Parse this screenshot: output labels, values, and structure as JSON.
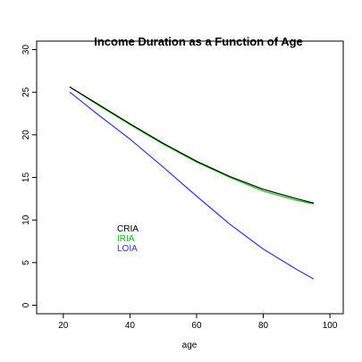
{
  "chart_data": {
    "type": "line",
    "title": "Income Duration as a Function of Age",
    "xlabel": "age",
    "ylabel": "",
    "xlim": [
      12,
      104
    ],
    "ylim": [
      -1,
      31
    ],
    "xticks": [
      20,
      40,
      60,
      80,
      100
    ],
    "yticks": [
      0,
      5,
      10,
      15,
      20,
      25,
      30
    ],
    "grid": false,
    "legend": {
      "placement": "lower-left",
      "frame": false
    },
    "series": [
      {
        "name": "CRIA",
        "color": "#000000",
        "x": [
          22,
          30,
          40,
          50,
          60,
          70,
          80,
          90,
          95
        ],
        "y": [
          25.6,
          23.7,
          21.3,
          19.0,
          16.9,
          15.1,
          13.6,
          12.5,
          12.0
        ]
      },
      {
        "name": "IRIA",
        "color": "#00cc00",
        "x": [
          22,
          30,
          40,
          50,
          60,
          70,
          80,
          90,
          95
        ],
        "y": [
          25.6,
          23.6,
          21.2,
          18.9,
          16.8,
          15.0,
          13.4,
          12.3,
          11.9
        ]
      },
      {
        "name": "LOIA",
        "color": "#3333ff",
        "x": [
          22,
          30,
          40,
          50,
          60,
          70,
          80,
          90,
          95
        ],
        "y": [
          25.0,
          22.5,
          19.5,
          16.2,
          12.8,
          9.5,
          6.6,
          4.2,
          3.1
        ]
      }
    ]
  }
}
